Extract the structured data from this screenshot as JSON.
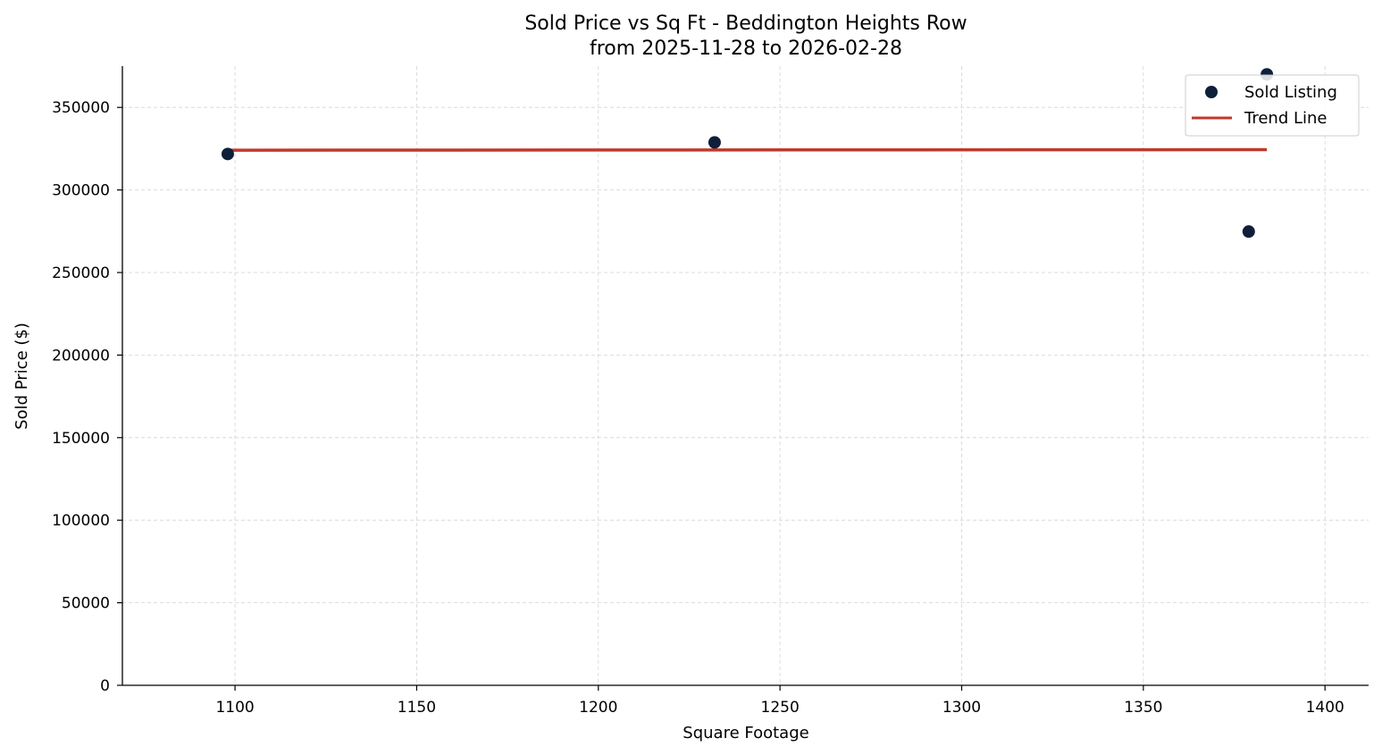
{
  "chart_data": {
    "type": "scatter",
    "title": "Sold Price vs Sq Ft - Beddington Heights Row",
    "subtitle": "from 2025-11-28 to 2026-02-28",
    "xlabel": "Square Footage",
    "ylabel": "Sold Price ($)",
    "xlim": [
      1069,
      1412
    ],
    "ylim": [
      0,
      375000
    ],
    "xticks": [
      1100,
      1150,
      1200,
      1250,
      1300,
      1350,
      1400
    ],
    "yticks": [
      0,
      50000,
      100000,
      150000,
      200000,
      250000,
      300000,
      350000
    ],
    "grid": true,
    "legend_position": "top-right",
    "series": [
      {
        "name": "Sold Listing",
        "kind": "scatter",
        "color": "#0f1f3a",
        "x": [
          1098,
          1232,
          1379,
          1384
        ],
        "y": [
          321800,
          328800,
          274800,
          370000
        ]
      },
      {
        "name": "Trend Line",
        "kind": "line",
        "color": "#c0392b",
        "x": [
          1098,
          1384
        ],
        "y": [
          324100,
          324400
        ]
      }
    ]
  }
}
